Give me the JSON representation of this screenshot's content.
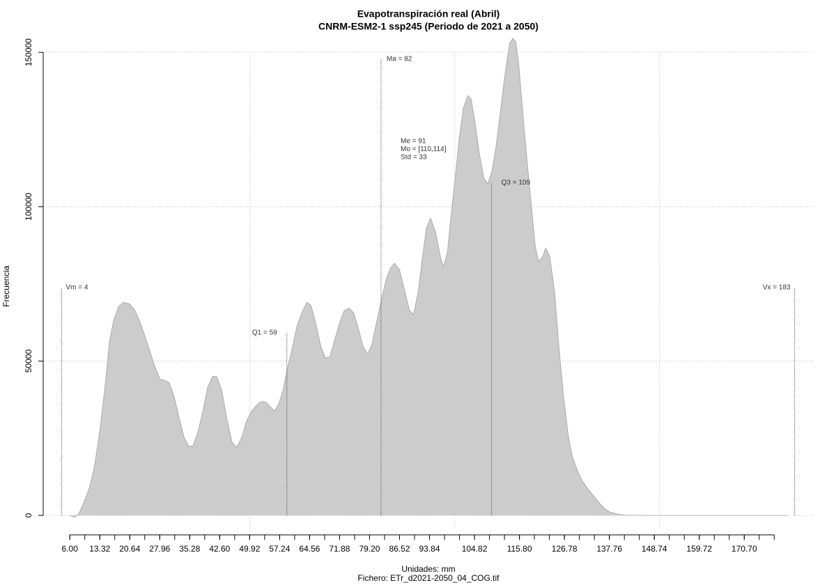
{
  "chart_data": {
    "type": "area",
    "title": "Evapotranspiración real (Abril)",
    "subtitle": "CNRM-ESM2-1 ssp245 (Periodo de 2021 a 2050)",
    "xlabel": "Unidades: mm",
    "caption": "Fichero: ETr_d2021-2050_04_COG.tif",
    "ylabel": "Frecuencia",
    "color": "#cccccc",
    "xlim": [
      -0.5,
      188
    ],
    "ylim": [
      -6300,
      155000
    ],
    "yticks": [
      0,
      50000,
      100000,
      150000
    ],
    "xticks": [
      {
        "value": 6,
        "label": "6.00"
      },
      {
        "value": 13.32,
        "label": "13.32"
      },
      {
        "value": 20.64,
        "label": "20.64"
      },
      {
        "value": 27.96,
        "label": "27.96"
      },
      {
        "value": 35.28,
        "label": "35.28"
      },
      {
        "value": 42.6,
        "label": "42.60"
      },
      {
        "value": 49.92,
        "label": "49.92"
      },
      {
        "value": 57.24,
        "label": "57.24"
      },
      {
        "value": 64.56,
        "label": "64.56"
      },
      {
        "value": 71.88,
        "label": "71.88"
      },
      {
        "value": 79.2,
        "label": "79.20"
      },
      {
        "value": 86.52,
        "label": "86.52"
      },
      {
        "value": 93.84,
        "label": "93.84"
      },
      {
        "value": 104.82,
        "label": "104.82"
      },
      {
        "value": 115.8,
        "label": "115.80"
      },
      {
        "value": 126.78,
        "label": "126.78"
      },
      {
        "value": 137.76,
        "label": "137.76"
      },
      {
        "value": 148.74,
        "label": "148.74"
      },
      {
        "value": 159.72,
        "label": "159.72"
      },
      {
        "value": 170.7,
        "label": "170.70"
      }
    ],
    "xminor_ticks": [
      6,
      9.66,
      13.32,
      16.98,
      20.64,
      24.3,
      27.96,
      31.62,
      35.28,
      38.94,
      42.6,
      46.26,
      49.92,
      53.58,
      57.24,
      60.9,
      64.56,
      68.22,
      71.88,
      75.54,
      79.2,
      82.86,
      86.52,
      90.18,
      93.84,
      97.5,
      101.16,
      104.82,
      108.48,
      112.14,
      115.8,
      119.46,
      123.12,
      126.78,
      130.44,
      134.1,
      137.76,
      141.42,
      145.08,
      148.74,
      152.4,
      156.06,
      159.72,
      163.38,
      167.04,
      170.7,
      174.36,
      178.02
    ],
    "xgrid": [
      50,
      100,
      150
    ],
    "grid": true,
    "x": [
      6.0,
      7.2,
      8.2,
      9.4,
      10.8,
      12.0,
      13.3,
      14.5,
      15.7,
      16.7,
      17.9,
      19.1,
      20.5,
      21.8,
      23.0,
      24.2,
      25.6,
      26.8,
      28.0,
      29.1,
      30.3,
      31.5,
      32.7,
      33.9,
      35.1,
      36.1,
      37.3,
      38.5,
      39.7,
      40.9,
      41.9,
      43.1,
      44.3,
      45.6,
      46.8,
      48.0,
      49.0,
      50.2,
      51.4,
      52.6,
      53.8,
      54.8,
      56.0,
      57.0,
      58.1,
      59.1,
      60.3,
      61.5,
      62.7,
      63.9,
      64.9,
      66.1,
      67.3,
      68.4,
      69.5,
      70.7,
      71.9,
      73.0,
      74.2,
      75.3,
      76.4,
      77.6,
      78.7,
      79.7,
      80.9,
      82.1,
      83.3,
      84.3,
      85.3,
      86.5,
      87.7,
      88.9,
      89.9,
      91.1,
      92.1,
      93.1,
      94.1,
      95.3,
      96.5,
      97.2,
      98.2,
      99.1,
      100.1,
      101.1,
      102.1,
      103.2,
      104.0,
      105.0,
      106.0,
      107.1,
      108.1,
      109.1,
      110.1,
      111.2,
      112.2,
      113.4,
      114.2,
      114.9,
      115.6,
      116.6,
      117.8,
      118.8,
      119.7,
      120.5,
      121.5,
      122.2,
      123.2,
      124.4,
      125.4,
      126.5,
      127.7,
      128.7,
      129.9,
      131.1,
      132.3,
      133.6,
      135.0,
      136.5,
      137.9,
      139.6,
      141.3,
      147.2,
      181.3
    ],
    "values": [
      0,
      -600,
      500,
      4100,
      9000,
      15800,
      27100,
      40600,
      56400,
      63200,
      67700,
      69000,
      68600,
      66600,
      63200,
      58700,
      53000,
      48100,
      44200,
      43800,
      42900,
      38400,
      31600,
      25300,
      22300,
      22600,
      27100,
      33800,
      41700,
      45100,
      44900,
      40600,
      31600,
      23700,
      22100,
      25300,
      30000,
      33400,
      35400,
      36800,
      36800,
      35400,
      33800,
      36100,
      40600,
      47400,
      54100,
      61400,
      65900,
      69000,
      68100,
      62000,
      54800,
      51000,
      51400,
      56900,
      62500,
      66300,
      67200,
      65600,
      60900,
      54800,
      52300,
      55000,
      62500,
      69900,
      76700,
      80100,
      81700,
      79600,
      73300,
      66600,
      65000,
      72600,
      83500,
      93200,
      96300,
      91800,
      83900,
      80500,
      85100,
      97000,
      109200,
      122300,
      132000,
      136000,
      134900,
      127000,
      117300,
      109200,
      107400,
      111700,
      119600,
      131300,
      142100,
      153000,
      154500,
      153400,
      146600,
      130800,
      112800,
      99300,
      86900,
      82100,
      83900,
      86600,
      83900,
      72200,
      55300,
      39500,
      25900,
      19200,
      14700,
      11300,
      9000,
      6800,
      4500,
      2300,
      1100,
      500,
      100,
      0,
      0
    ],
    "markers": [
      {
        "label": "Vm = 4",
        "x": 4,
        "y": 73800
      },
      {
        "label": "Q1 = 59",
        "x": 59,
        "y": 59100
      },
      {
        "label": "Ma = 82",
        "x": 82,
        "y": 147800
      },
      {
        "label": "Q3 = 109",
        "x": 109,
        "y": 107800
      },
      {
        "label": "Vx = 183",
        "x": 183,
        "y": 73800
      }
    ],
    "stats": [
      "Me = 91",
      "Mo = [110,114]",
      "Std = 33"
    ]
  }
}
